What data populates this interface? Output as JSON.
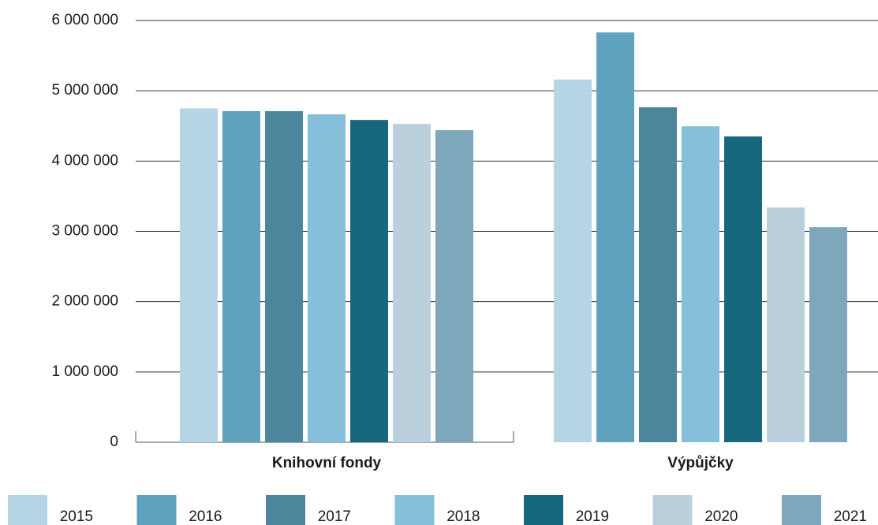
{
  "chart_data": {
    "type": "bar",
    "categories": [
      "Knihovní fondy",
      "Výpůjčky"
    ],
    "series": [
      {
        "name": "2015",
        "color": "#b5d5e4",
        "values": [
          4750000,
          5160000
        ]
      },
      {
        "name": "2016",
        "color": "#5fa2bd",
        "values": [
          4710000,
          5830000
        ]
      },
      {
        "name": "2017",
        "color": "#4c869c",
        "values": [
          4710000,
          4765000
        ]
      },
      {
        "name": "2018",
        "color": "#86bfd9",
        "values": [
          4665000,
          4495000
        ]
      },
      {
        "name": "2019",
        "color": "#17677f",
        "values": [
          4585000,
          4350000
        ]
      },
      {
        "name": "2020",
        "color": "#bad0dc",
        "values": [
          4530000,
          3340000
        ]
      },
      {
        "name": "2021",
        "color": "#7fa7bb",
        "values": [
          4440000,
          3060000
        ]
      }
    ],
    "ylim": [
      0,
      6000000
    ],
    "yticks": [
      0,
      {
        "value": 1000000,
        "label": "1 000 000"
      },
      {
        "value": 2000000,
        "label": "2 000 000"
      },
      {
        "value": 3000000,
        "label": "3 000 000"
      },
      {
        "value": 4000000,
        "label": "4 000 000"
      },
      {
        "value": 5000000,
        "label": "5 000 000"
      },
      {
        "value": 6000000,
        "label": "6 000 000"
      }
    ],
    "grid": true,
    "legend": "bottom"
  }
}
